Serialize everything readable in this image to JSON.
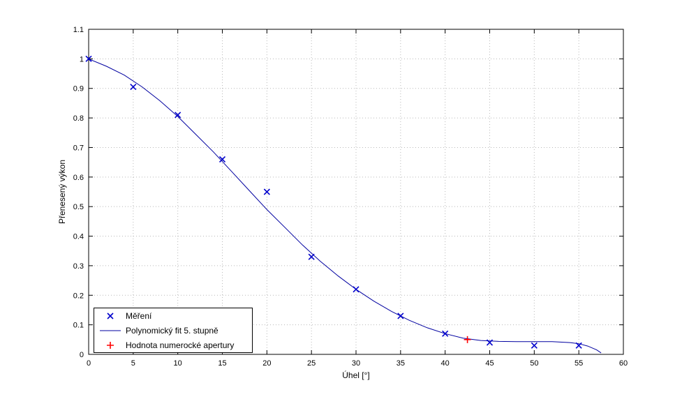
{
  "figure": {
    "background": "#ffffff"
  },
  "chart_data": {
    "type": "line",
    "title": "",
    "xlabel": "Úhel [°]",
    "ylabel": "Přenesený výkon",
    "xlim": [
      0,
      60
    ],
    "ylim": [
      0,
      1.1
    ],
    "xticks": [
      0,
      5,
      10,
      15,
      20,
      25,
      30,
      35,
      40,
      45,
      50,
      55,
      60
    ],
    "xtick_labels": [
      "0",
      "5",
      "10",
      "15",
      "20",
      "25",
      "30",
      "35",
      "40",
      "45",
      "50",
      "55",
      "60"
    ],
    "yticks": [
      0,
      0.1,
      0.2,
      0.3,
      0.4,
      0.5,
      0.6,
      0.7,
      0.8,
      0.9,
      1.0,
      1.1
    ],
    "ytick_labels": [
      "0",
      "0.1",
      "0.2",
      "0.3",
      "0.4",
      "0.5",
      "0.6",
      "0.7",
      "0.8",
      "0.9",
      "1",
      "1.1"
    ],
    "grid": true,
    "grid_color": "#b8b8b8",
    "axis_color": "#000000",
    "legend_position": "bottom-left",
    "series": [
      {
        "name": "Měření",
        "kind": "scatter",
        "marker": "x",
        "color": "#0000cc",
        "x": [
          0,
          5,
          10,
          15,
          20,
          25,
          30,
          35,
          40,
          45,
          50,
          55
        ],
        "y": [
          1.0,
          0.905,
          0.81,
          0.66,
          0.55,
          0.33,
          0.22,
          0.13,
          0.07,
          0.04,
          0.03,
          0.03
        ]
      },
      {
        "name": "Polynomický fit 5. stupně",
        "kind": "line",
        "color": "#0000a0",
        "x": [
          0,
          2,
          4,
          6,
          8,
          10,
          12,
          14,
          16,
          18,
          20,
          22,
          24,
          26,
          28,
          30,
          32,
          34,
          36,
          38,
          40,
          42,
          44,
          46,
          48,
          50,
          52,
          54,
          55,
          56,
          57,
          57.5
        ],
        "y": [
          1.0,
          0.975,
          0.945,
          0.905,
          0.858,
          0.805,
          0.745,
          0.685,
          0.62,
          0.555,
          0.49,
          0.43,
          0.37,
          0.315,
          0.265,
          0.22,
          0.18,
          0.145,
          0.115,
          0.09,
          0.07,
          0.055,
          0.047,
          0.044,
          0.043,
          0.043,
          0.043,
          0.04,
          0.036,
          0.028,
          0.015,
          0.005
        ]
      },
      {
        "name": "Hodnota numerocké apertury",
        "kind": "scatter",
        "marker": "+",
        "color": "#ff0000",
        "x": [
          42.5
        ],
        "y": [
          0.05
        ]
      }
    ]
  }
}
